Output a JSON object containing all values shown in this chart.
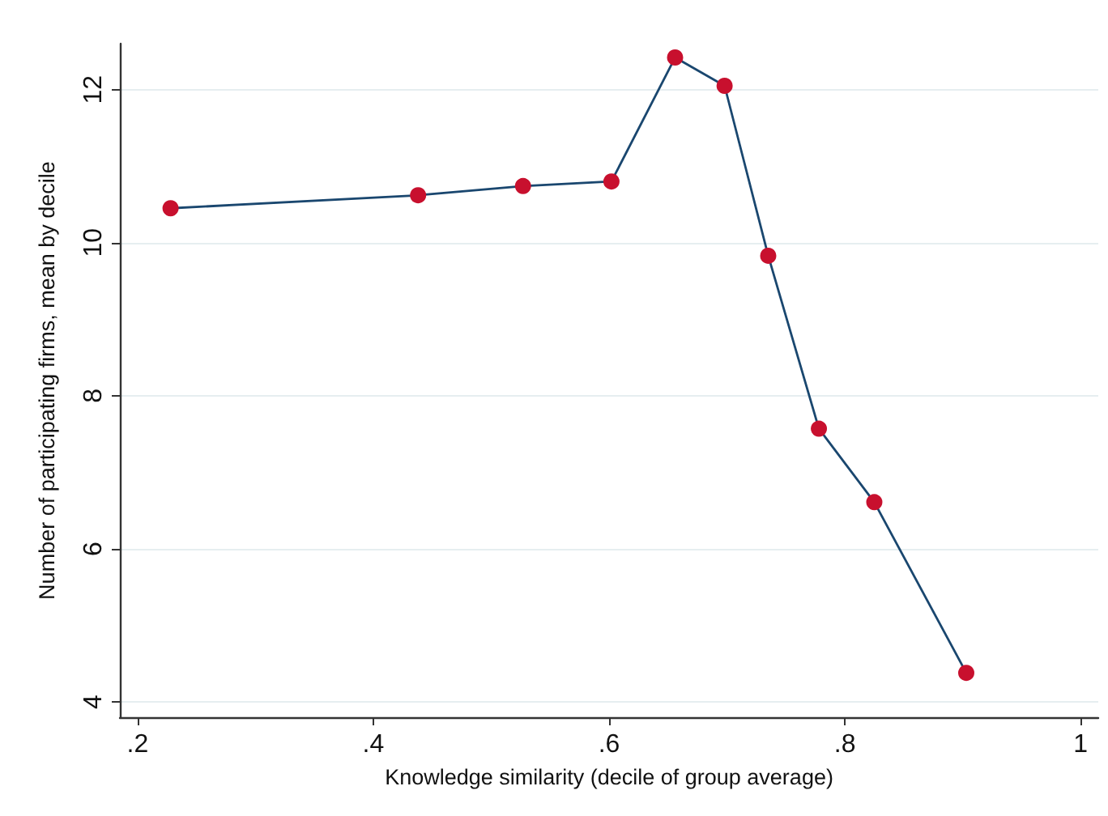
{
  "chart_data": {
    "type": "line",
    "xlabel": "Knowledge similarity (decile of group average)",
    "ylabel": "Number of participating firms, mean by decile",
    "x": [
      0.228,
      0.438,
      0.527,
      0.602,
      0.656,
      0.698,
      0.735,
      0.778,
      0.825,
      0.903
    ],
    "values": [
      10.45,
      10.62,
      10.74,
      10.8,
      12.42,
      12.05,
      9.83,
      7.57,
      6.61,
      4.38
    ],
    "color": "#1a476f",
    "colors": [
      "#c8102e",
      "#c8102e",
      "#c8102e",
      "#c8102e",
      "#c8102e",
      "#c8102e",
      "#c8102e",
      "#c8102e",
      "#c8102e",
      "#c8102e"
    ],
    "xlim": [
      0.185,
      1.015
    ],
    "xticks": [
      {
        "value": 0.2,
        "label": ".2"
      },
      {
        "value": 0.4,
        "label": ".4"
      },
      {
        "value": 0.6,
        "label": ".6"
      },
      {
        "value": 0.8,
        "label": ".8"
      },
      1
    ],
    "ylim": [
      3.8,
      12.6
    ],
    "yticks": [
      4,
      6,
      8,
      10,
      12
    ],
    "grid": "y",
    "marker": "circle",
    "line_style": "solid"
  }
}
